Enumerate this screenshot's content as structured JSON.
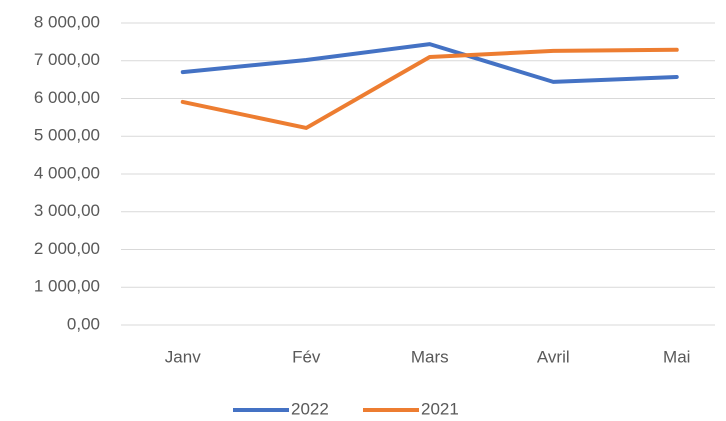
{
  "chart_data": {
    "type": "line",
    "categories": [
      "Janv",
      "Fév",
      "Mars",
      "Avril",
      "Mai"
    ],
    "series": [
      {
        "name": "2022",
        "color": "#4472c4",
        "values": [
          6700,
          7020,
          7440,
          6440,
          6570
        ]
      },
      {
        "name": "2021",
        "color": "#ed7d31",
        "values": [
          5910,
          5220,
          7100,
          7260,
          7290
        ]
      }
    ],
    "ylim": [
      0,
      8000
    ],
    "yticks": [
      {
        "value": 0,
        "label": "0,00"
      },
      {
        "value": 1000,
        "label": "1 000,00"
      },
      {
        "value": 2000,
        "label": "2 000,00"
      },
      {
        "value": 3000,
        "label": "3 000,00"
      },
      {
        "value": 4000,
        "label": "4 000,00"
      },
      {
        "value": 5000,
        "label": "5 000,00"
      },
      {
        "value": 6000,
        "label": "6 000,00"
      },
      {
        "value": 7000,
        "label": "7 000,00"
      },
      {
        "value": 8000,
        "label": "8 000,00"
      }
    ],
    "grid": true,
    "legend": "bottom"
  }
}
